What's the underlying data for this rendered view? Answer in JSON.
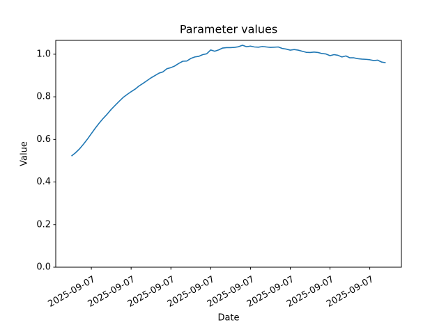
{
  "chart_data": {
    "type": "line",
    "title": "Parameter values",
    "x_label": "Date",
    "y_label": "Value",
    "series": [
      {
        "color": "#1f77b4",
        "values": [
          0.522,
          0.537,
          0.555,
          0.577,
          0.601,
          0.627,
          0.653,
          0.677,
          0.699,
          0.719,
          0.741,
          0.76,
          0.779,
          0.797,
          0.811,
          0.824,
          0.836,
          0.851,
          0.863,
          0.876,
          0.889,
          0.9,
          0.911,
          0.917,
          0.932,
          0.937,
          0.945,
          0.957,
          0.967,
          0.968,
          0.98,
          0.987,
          0.99,
          0.998,
          1.002,
          1.02,
          1.014,
          1.02,
          1.029,
          1.031,
          1.031,
          1.032,
          1.035,
          1.042,
          1.035,
          1.038,
          1.034,
          1.033,
          1.036,
          1.034,
          1.032,
          1.033,
          1.034,
          1.027,
          1.024,
          1.019,
          1.022,
          1.019,
          1.014,
          1.009,
          1.008,
          1.01,
          1.008,
          1.003,
          1.001,
          0.993,
          0.998,
          0.995,
          0.987,
          0.992,
          0.983,
          0.983,
          0.979,
          0.977,
          0.976,
          0.974,
          0.97,
          0.972,
          0.963,
          0.96
        ]
      }
    ],
    "xlim": [
      -3.95,
      82.95
    ],
    "xticks": [
      {
        "value": 5,
        "label": "2025-09-07"
      },
      {
        "value": 15,
        "label": "2025-09-07"
      },
      {
        "value": 25,
        "label": "2025-09-07"
      },
      {
        "value": 35,
        "label": "2025-09-07"
      },
      {
        "value": 45,
        "label": "2025-09-07"
      },
      {
        "value": 55,
        "label": "2025-09-07"
      },
      {
        "value": 65,
        "label": "2025-09-07"
      },
      {
        "value": 75,
        "label": "2025-09-07"
      }
    ],
    "ylim": [
      0,
      1.065
    ],
    "yticks": [
      {
        "value": 0,
        "label": "0.0"
      },
      0.2,
      0.4,
      0.6,
      0.8,
      {
        "value": 1,
        "label": "1.0"
      }
    ]
  }
}
